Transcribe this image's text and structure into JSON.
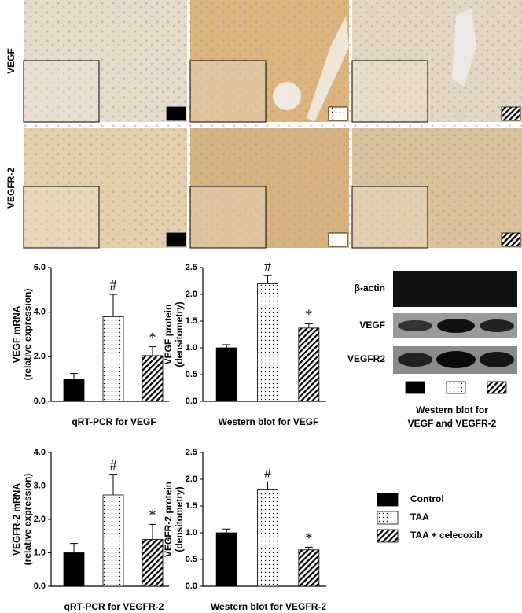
{
  "micrographs": {
    "row_labels": [
      "VEGF",
      "VEGFR-2"
    ]
  },
  "legend": [
    {
      "name": "Control",
      "fill": "solid"
    },
    {
      "name": "TAA",
      "fill": "dotted"
    },
    {
      "name": "TAA + celecoxib",
      "fill": "hatched"
    }
  ],
  "western_blot": {
    "rows": [
      "β-actin",
      "VEGF",
      "VEGFR2"
    ],
    "caption": [
      "Western blot for",
      "VEGF and VEGFR-2"
    ]
  },
  "chart_data": [
    {
      "type": "bar",
      "ylabel": [
        "VEGF mRNA",
        "(relative expression)"
      ],
      "xlabel": "qRT-PCR for VEGF",
      "values": [
        1.0,
        3.8,
        2.05
      ],
      "errors": [
        0.25,
        1.0,
        0.4
      ],
      "annotations": [
        null,
        "#",
        "*"
      ],
      "ylim": [
        0,
        6
      ],
      "yticks": [
        {
          "value": 0,
          "label": "0.0"
        },
        {
          "value": 2,
          "label": "2.0"
        },
        {
          "value": 4,
          "label": "4.0"
        },
        {
          "value": 6,
          "label": "6.0"
        }
      ]
    },
    {
      "type": "bar",
      "ylabel": [
        "VEGF protein",
        "(densitometry)"
      ],
      "xlabel": "Western blot for VEGF",
      "values": [
        1.0,
        2.2,
        1.37
      ],
      "errors": [
        0.06,
        0.15,
        0.08
      ],
      "annotations": [
        null,
        "#",
        "*"
      ],
      "ylim": [
        0,
        2.5
      ],
      "yticks": [
        {
          "value": 0,
          "label": "0.0"
        },
        0.5,
        {
          "value": 1,
          "label": "1.0"
        },
        1.5,
        {
          "value": 2,
          "label": "2.0"
        },
        2.5
      ]
    },
    {
      "type": "bar",
      "ylabel": [
        "VEGFR-2 mRNA",
        "(relative expression)"
      ],
      "xlabel": "qRT-PCR for VEGFR-2",
      "values": [
        1.0,
        2.73,
        1.4
      ],
      "errors": [
        0.28,
        0.62,
        0.45
      ],
      "annotations": [
        null,
        "#",
        "*"
      ],
      "ylim": [
        0,
        4
      ],
      "yticks": [
        {
          "value": 0,
          "label": "0.0"
        },
        {
          "value": 1,
          "label": "1.0"
        },
        {
          "value": 2,
          "label": "2.0"
        },
        {
          "value": 3,
          "label": "3.0"
        },
        {
          "value": 4,
          "label": "4.0"
        }
      ]
    },
    {
      "type": "bar",
      "ylabel": [
        "VEGFR-2 protein",
        "(densitometry)"
      ],
      "xlabel": "Western blot for VEGFR-2",
      "values": [
        1.0,
        1.8,
        0.68
      ],
      "errors": [
        0.07,
        0.15,
        0.05
      ],
      "annotations": [
        null,
        "#",
        "*"
      ],
      "ylim": [
        0,
        2.5
      ],
      "yticks": [
        {
          "value": 0,
          "label": "0.0"
        },
        0.5,
        {
          "value": 1,
          "label": "1.0"
        },
        1.5,
        {
          "value": 2,
          "label": "2.0"
        },
        2.5
      ]
    }
  ]
}
